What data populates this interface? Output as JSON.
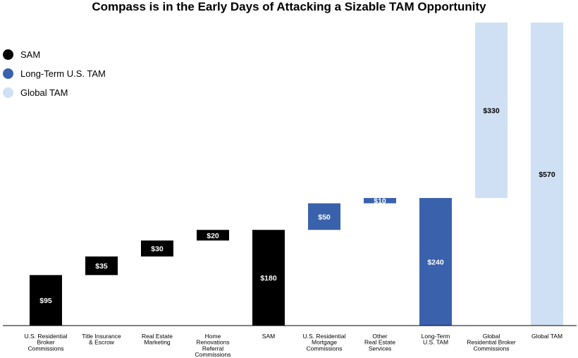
{
  "title": "Compass is in the Early Days of Attacking a Sizable TAM Opportunity",
  "legend": [
    {
      "label": "SAM",
      "color": "#000000"
    },
    {
      "label": "Long-Term U.S. TAM",
      "color": "#3a62ac"
    },
    {
      "label": "Global TAM",
      "color": "#cfe0f4"
    }
  ],
  "chart_data": {
    "type": "bar",
    "subtype": "waterfall",
    "title": "Compass is in the Early Days of Attacking a Sizable TAM Opportunity",
    "unit": "$B",
    "ylim": [
      0,
      570
    ],
    "categories": [
      [
        "U.S. Residential",
        "Broker",
        "Commissions"
      ],
      [
        "Title Insurance",
        "& Escrow"
      ],
      [
        "Real Estate",
        "Marketing"
      ],
      [
        "Home",
        "Renovations",
        "Referral",
        "Commissions"
      ],
      [
        "SAM"
      ],
      [
        "U.S. Residential",
        "Mortgage",
        "Commissions"
      ],
      [
        "Other",
        "Real Estate",
        "Services"
      ],
      [
        "Long-Term",
        "U.S. TAM"
      ],
      [
        "Global",
        "Residential Broker",
        "Commissions"
      ],
      [
        "Global TAM"
      ]
    ],
    "bars": [
      {
        "start": 0,
        "end": 95,
        "label": "$95",
        "group": "SAM"
      },
      {
        "start": 95,
        "end": 130,
        "label": "$35",
        "group": "SAM"
      },
      {
        "start": 130,
        "end": 160,
        "label": "$30",
        "group": "SAM"
      },
      {
        "start": 160,
        "end": 180,
        "label": "$20",
        "group": "SAM"
      },
      {
        "start": 0,
        "end": 180,
        "label": "$180",
        "group": "SAM"
      },
      {
        "start": 180,
        "end": 230,
        "label": "$50",
        "group": "Long-Term U.S. TAM"
      },
      {
        "start": 230,
        "end": 240,
        "label": "$10",
        "group": "Long-Term U.S. TAM"
      },
      {
        "start": 0,
        "end": 240,
        "label": "$240",
        "group": "Long-Term U.S. TAM"
      },
      {
        "start": 240,
        "end": 570,
        "label": "$330",
        "group": "Global TAM"
      },
      {
        "start": 0,
        "end": 570,
        "label": "$570",
        "group": "Global TAM"
      }
    ]
  }
}
